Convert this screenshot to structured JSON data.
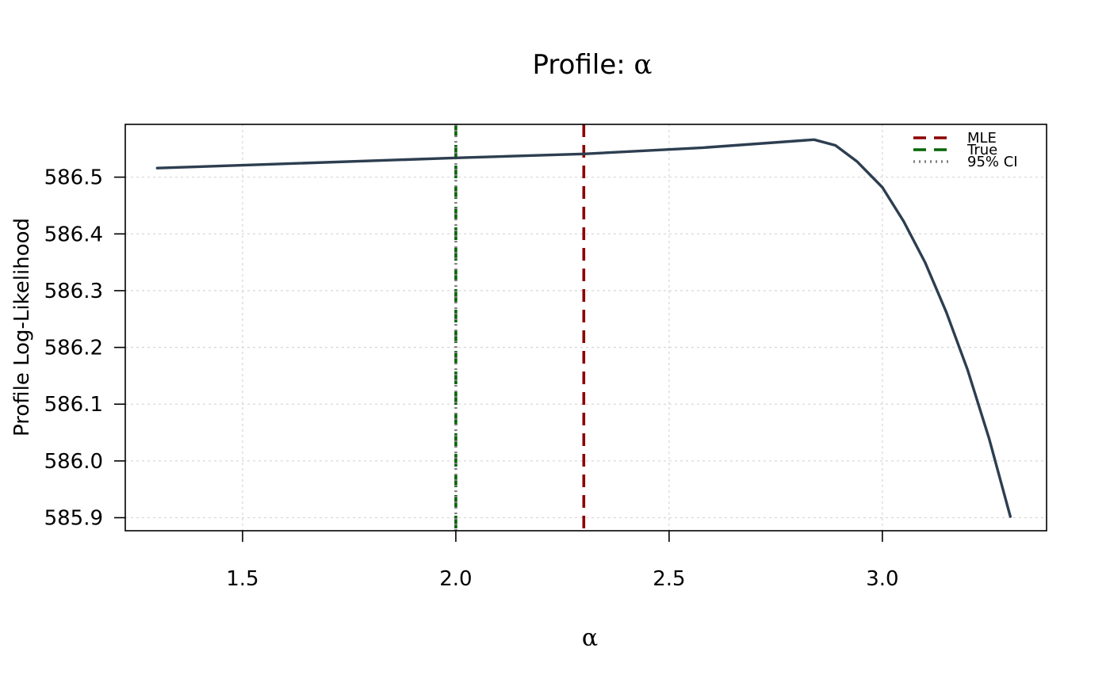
{
  "chart_data": {
    "type": "line",
    "title_prefix": "Profile: ",
    "title_symbol": "α",
    "xlabel": "α",
    "ylabel": "Profile Log-Likelihood",
    "xlim": [
      1.225,
      3.385
    ],
    "ylim": [
      585.877,
      586.593
    ],
    "grid": true,
    "legend_position": "top-right",
    "x_ticks": [
      {
        "value": 1.5,
        "label": "1.5"
      },
      {
        "value": 2.0,
        "label": "2.0"
      },
      {
        "value": 2.5,
        "label": "2.5"
      },
      {
        "value": 3.0,
        "label": "3.0"
      }
    ],
    "y_ticks": [
      {
        "value": 585.9,
        "label": "585.9"
      },
      {
        "value": 586.0,
        "label": "586.0"
      },
      {
        "value": 586.1,
        "label": "586.1"
      },
      {
        "value": 586.2,
        "label": "586.2"
      },
      {
        "value": 586.3,
        "label": "586.3"
      },
      {
        "value": 586.4,
        "label": "586.4"
      },
      {
        "value": 586.5,
        "label": "586.5"
      }
    ],
    "series": [
      {
        "color": "#2d3e50",
        "x": [
          1.3,
          1.5,
          2.0,
          2.3,
          2.58,
          2.84,
          2.89,
          2.94,
          3.0,
          3.05,
          3.1,
          3.15,
          3.2,
          3.25,
          3.3
        ],
        "y": [
          586.516,
          586.521,
          586.534,
          586.541,
          586.552,
          586.566,
          586.556,
          586.528,
          586.482,
          586.422,
          586.35,
          586.262,
          586.16,
          586.04,
          585.902
        ]
      }
    ],
    "reference_lines": [
      {
        "name": "MLE",
        "x": 2.3,
        "color": "#8b0000",
        "style": "dashed"
      },
      {
        "name": "True",
        "x": 2.0,
        "color": "#006400",
        "style": "dashed"
      },
      {
        "name": "95% CI",
        "x": 2.0,
        "color": "#808080",
        "style": "dotted"
      }
    ],
    "legend": [
      {
        "label": "MLE",
        "color": "#8b0000",
        "style": "dashed"
      },
      {
        "label": "True",
        "color": "#006400",
        "style": "dashed"
      },
      {
        "label": "95% CI",
        "color": "#808080",
        "style": "dotted"
      }
    ]
  }
}
